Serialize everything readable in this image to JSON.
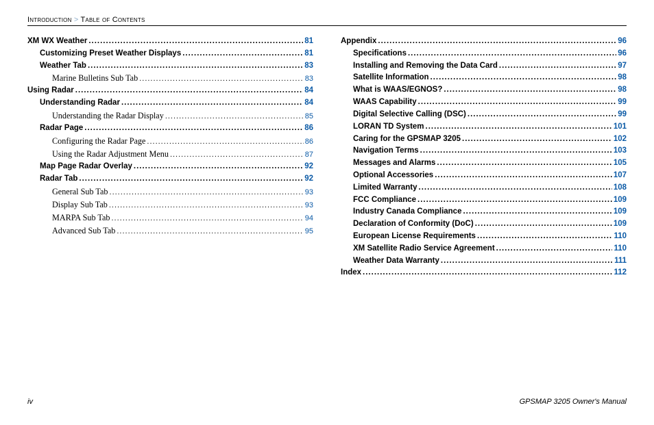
{
  "header": {
    "left": "Introduction",
    "sep": ">",
    "right": "Table of Contents"
  },
  "footer": {
    "left": "iv",
    "right": "GPSMAP 3205 Owner's Manual"
  },
  "left_col": [
    {
      "lvl": 0,
      "label": "XM WX Weather",
      "page": "81"
    },
    {
      "lvl": 1,
      "label": "Customizing Preset Weather Displays",
      "page": "81"
    },
    {
      "lvl": 1,
      "label": "Weather Tab",
      "page": "83"
    },
    {
      "lvl": 2,
      "label": "Marine Bulletins Sub Tab",
      "page": "83"
    },
    {
      "lvl": 0,
      "label": "Using Radar",
      "page": "84"
    },
    {
      "lvl": 1,
      "label": "Understanding Radar",
      "page": "84"
    },
    {
      "lvl": 2,
      "label": "Understanding the Radar Display",
      "page": "85"
    },
    {
      "lvl": 1,
      "label": "Radar Page",
      "page": "86"
    },
    {
      "lvl": 2,
      "label": "Configuring the Radar Page",
      "page": "86"
    },
    {
      "lvl": 2,
      "label": "Using the Radar Adjustment Menu",
      "page": "87"
    },
    {
      "lvl": 1,
      "label": "Map Page Radar Overlay",
      "page": "92"
    },
    {
      "lvl": 1,
      "label": "Radar Tab",
      "page": "92"
    },
    {
      "lvl": 2,
      "label": "General Sub Tab",
      "page": "93"
    },
    {
      "lvl": 2,
      "label": "Display Sub Tab",
      "page": "93"
    },
    {
      "lvl": 2,
      "label": "MARPA Sub Tab",
      "page": "94"
    },
    {
      "lvl": 2,
      "label": "Advanced Sub Tab",
      "page": "95"
    }
  ],
  "right_col": [
    {
      "lvl": 0,
      "label": "Appendix",
      "page": "96"
    },
    {
      "lvl": 1,
      "label": "Specifications",
      "page": "96"
    },
    {
      "lvl": 1,
      "label": "Installing and Removing the Data Card",
      "page": "97"
    },
    {
      "lvl": 1,
      "label": "Satellite Information",
      "page": "98"
    },
    {
      "lvl": 1,
      "label": "What is WAAS/EGNOS?",
      "page": "98"
    },
    {
      "lvl": 1,
      "label": "WAAS Capability",
      "page": "99"
    },
    {
      "lvl": 1,
      "label": "Digital Selective Calling (DSC)",
      "page": "99"
    },
    {
      "lvl": 1,
      "label": "LORAN TD System",
      "page": "101"
    },
    {
      "lvl": 1,
      "label": "Caring for the GPSMAP 3205",
      "page": "102"
    },
    {
      "lvl": 1,
      "label": "Navigation Terms",
      "page": "103"
    },
    {
      "lvl": 1,
      "label": "Messages and Alarms",
      "page": "105"
    },
    {
      "lvl": 1,
      "label": "Optional Accessories",
      "page": "107"
    },
    {
      "lvl": 1,
      "label": "Limited Warranty",
      "page": "108"
    },
    {
      "lvl": 1,
      "label": "FCC Compliance",
      "page": "109"
    },
    {
      "lvl": 1,
      "label": "Industry Canada Compliance",
      "page": "109"
    },
    {
      "lvl": 1,
      "label": "Declaration of Conformity (DoC)",
      "page": "109"
    },
    {
      "lvl": 1,
      "label": "European License Requirements",
      "page": "110"
    },
    {
      "lvl": 1,
      "label": "XM Satellite Radio Service Agreement",
      "page": "110"
    },
    {
      "lvl": 1,
      "label": "Weather Data Warranty",
      "page": "111"
    },
    {
      "lvl": 0,
      "label": "Index",
      "page": "112"
    }
  ]
}
